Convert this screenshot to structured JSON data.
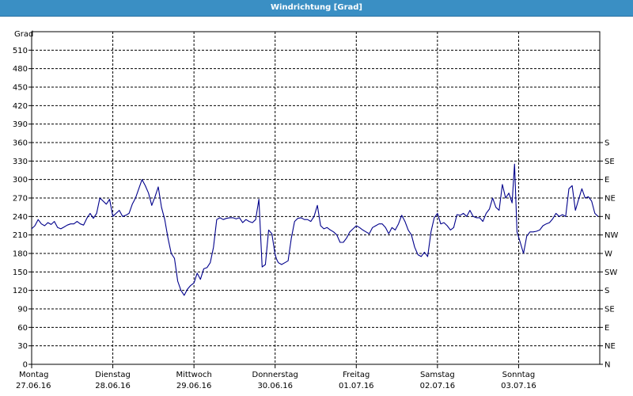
{
  "window": {
    "title": "Windrichtung [Grad]"
  },
  "chart_data": {
    "type": "line",
    "title": "Windrichtung [Grad]",
    "ylabel": "Grad",
    "ylim": [
      0,
      540
    ],
    "yticks": [
      0,
      30,
      60,
      90,
      120,
      150,
      180,
      210,
      240,
      270,
      300,
      330,
      360,
      390,
      420,
      450,
      480,
      510
    ],
    "right_labels": [
      {
        "value": 0,
        "label": "N"
      },
      {
        "value": 30,
        "label": "NE"
      },
      {
        "value": 60,
        "label": "E"
      },
      {
        "value": 90,
        "label": "SE"
      },
      {
        "value": 120,
        "label": "S"
      },
      {
        "value": 150,
        "label": "SW"
      },
      {
        "value": 180,
        "label": "W"
      },
      {
        "value": 210,
        "label": "NW"
      },
      {
        "value": 240,
        "label": "N"
      },
      {
        "value": 270,
        "label": "NE"
      },
      {
        "value": 300,
        "label": "E"
      },
      {
        "value": 330,
        "label": "SE"
      },
      {
        "value": 360,
        "label": "S"
      }
    ],
    "xlim": [
      0,
      7
    ],
    "day_labels": [
      {
        "day": "Montag",
        "date": "27.06.16"
      },
      {
        "day": "Dienstag",
        "date": "28.06.16"
      },
      {
        "day": "Mittwoch",
        "date": "29.06.16"
      },
      {
        "day": "Donnerstag",
        "date": "30.06.16"
      },
      {
        "day": "Freitag",
        "date": "01.07.16"
      },
      {
        "day": "Samstag",
        "date": "02.07.16"
      },
      {
        "day": "Sonntag",
        "date": "03.07.16"
      }
    ],
    "grid": true,
    "line_color": "#00008b",
    "series": [
      {
        "x": [
          0.0,
          0.04,
          0.08,
          0.12,
          0.16,
          0.2,
          0.24,
          0.28,
          0.32,
          0.36,
          0.4,
          0.44,
          0.48,
          0.52,
          0.56,
          0.6,
          0.64,
          0.68,
          0.72,
          0.76,
          0.8,
          0.84,
          0.88,
          0.92,
          0.96,
          1.0,
          1.04,
          1.08,
          1.12,
          1.16,
          1.2,
          1.24,
          1.28,
          1.32,
          1.36,
          1.4,
          1.44,
          1.48,
          1.52,
          1.56,
          1.6,
          1.64,
          1.68,
          1.72,
          1.76,
          1.8,
          1.84,
          1.88,
          1.92,
          1.96,
          2.0,
          2.04,
          2.08,
          2.12,
          2.16,
          2.2,
          2.24,
          2.28,
          2.32,
          2.36,
          2.4,
          2.44,
          2.48,
          2.52,
          2.56,
          2.6,
          2.64,
          2.68,
          2.72,
          2.76,
          2.8,
          2.84,
          2.88,
          2.92,
          2.96,
          3.0,
          3.02,
          3.04,
          3.08,
          3.12,
          3.16,
          3.2,
          3.24,
          3.28,
          3.32,
          3.36,
          3.4,
          3.44,
          3.48,
          3.52,
          3.56,
          3.6,
          3.64,
          3.68,
          3.72,
          3.76,
          3.8,
          3.84,
          3.88,
          3.92,
          3.96,
          4.0,
          4.04,
          4.08,
          4.12,
          4.16,
          4.2,
          4.24,
          4.28,
          4.32,
          4.36,
          4.4,
          4.44,
          4.48,
          4.52,
          4.56,
          4.6,
          4.64,
          4.68,
          4.72,
          4.76,
          4.8,
          4.84,
          4.88,
          4.92,
          4.96,
          5.0,
          5.04,
          5.08,
          5.12,
          5.16,
          5.2,
          5.24,
          5.28,
          5.32,
          5.36,
          5.4,
          5.44,
          5.48,
          5.52,
          5.56,
          5.6,
          5.64,
          5.68,
          5.72,
          5.76,
          5.8,
          5.84,
          5.88,
          5.92,
          5.95,
          5.98,
          6.02,
          6.06,
          6.1,
          6.14,
          6.18,
          6.22,
          6.26,
          6.3,
          6.34,
          6.38,
          6.42,
          6.46,
          6.5,
          6.54,
          6.58,
          6.62,
          6.66,
          6.7,
          6.74,
          6.78,
          6.82,
          6.86,
          6.9,
          6.94,
          6.98
        ],
        "y": [
          220,
          225,
          235,
          228,
          225,
          230,
          227,
          232,
          222,
          220,
          223,
          226,
          228,
          228,
          232,
          228,
          226,
          237,
          245,
          237,
          245,
          270,
          265,
          260,
          268,
          240,
          245,
          250,
          240,
          242,
          245,
          260,
          270,
          285,
          300,
          290,
          278,
          258,
          272,
          288,
          255,
          235,
          205,
          180,
          172,
          135,
          120,
          112,
          122,
          128,
          132,
          148,
          138,
          155,
          157,
          165,
          190,
          235,
          238,
          235,
          237,
          238,
          238,
          236,
          238,
          230,
          235,
          232,
          230,
          235,
          268,
          158,
          162,
          218,
          212,
          178,
          170,
          165,
          162,
          165,
          168,
          205,
          232,
          237,
          238,
          235,
          235,
          232,
          240,
          258,
          225,
          220,
          222,
          218,
          215,
          210,
          198,
          198,
          205,
          215,
          220,
          225,
          222,
          218,
          215,
          212,
          222,
          225,
          228,
          228,
          222,
          212,
          222,
          218,
          228,
          242,
          232,
          218,
          210,
          190,
          178,
          175,
          182,
          175,
          215,
          238,
          245,
          228,
          230,
          225,
          218,
          222,
          243,
          242,
          245,
          240,
          250,
          240,
          238,
          238,
          232,
          245,
          252,
          270,
          255,
          250,
          292,
          270,
          278,
          262,
          325,
          215,
          198,
          180,
          208,
          215,
          215,
          216,
          218,
          225,
          228,
          230,
          236,
          245,
          240,
          243,
          240,
          285,
          290,
          250,
          268,
          285,
          270,
          272,
          265,
          245,
          240
        ]
      }
    ]
  }
}
